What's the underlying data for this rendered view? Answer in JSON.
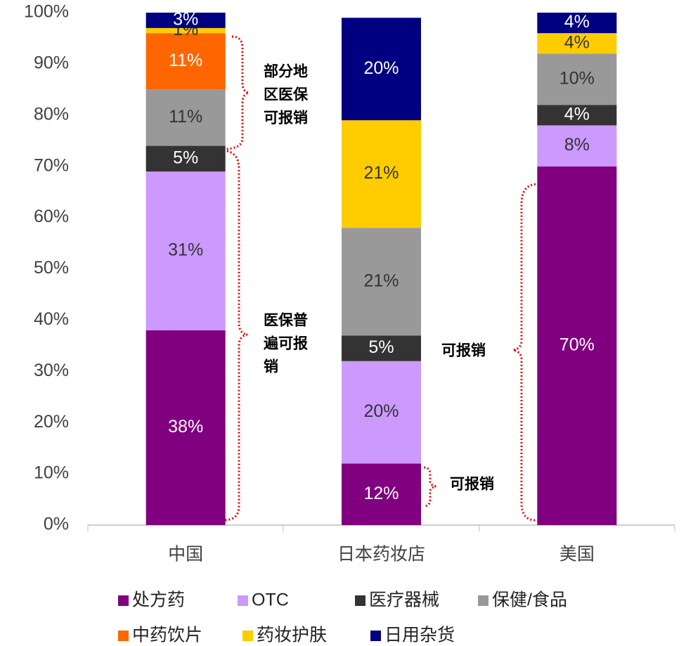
{
  "chart_data": {
    "type": "stacked_bar",
    "categories": [
      "中国",
      "日本药妆店",
      "美国"
    ],
    "series": [
      {
        "name": "处方药",
        "color": "#800080",
        "values": [
          38,
          12,
          70
        ],
        "value_labels": [
          "38%",
          "12%",
          "70%"
        ]
      },
      {
        "name": "OTC",
        "color": "#cc99ff",
        "values": [
          31,
          20,
          8
        ],
        "value_labels": [
          "31%",
          "20%",
          "8%"
        ]
      },
      {
        "name": "医疗器械",
        "color": "#333333",
        "values": [
          5,
          5,
          4
        ],
        "value_labels": [
          "5%",
          "5%",
          "4%"
        ]
      },
      {
        "name": "保健/食品",
        "color": "#999999",
        "values": [
          11,
          21,
          10
        ],
        "value_labels": [
          "11%",
          "21%",
          "10%"
        ]
      },
      {
        "name": "中药饮片",
        "color": "#ff6600",
        "values": [
          11,
          null,
          null
        ],
        "value_labels": [
          "11%",
          null,
          null
        ]
      },
      {
        "name": "药妆护肤",
        "color": "#ffcc00",
        "values": [
          1,
          21,
          4
        ],
        "value_labels": [
          "1%",
          "21%",
          "4%"
        ]
      },
      {
        "name": "日用杂货",
        "color": "#000080",
        "values": [
          3,
          20,
          4
        ],
        "value_labels": [
          "3%",
          "20%",
          "4%"
        ]
      }
    ],
    "ylim": [
      0,
      100
    ],
    "yticks": [
      {
        "value": 0,
        "label": "0%"
      },
      {
        "value": 10,
        "label": "10%"
      },
      {
        "value": 20,
        "label": "20%"
      },
      {
        "value": 30,
        "label": "30%"
      },
      {
        "value": 40,
        "label": "40%"
      },
      {
        "value": 50,
        "label": "50%"
      },
      {
        "value": 60,
        "label": "60%"
      },
      {
        "value": 70,
        "label": "70%"
      },
      {
        "value": 80,
        "label": "80%"
      },
      {
        "value": 90,
        "label": "90%"
      },
      {
        "value": 100,
        "label": "100%"
      }
    ],
    "annotations": [
      [
        "部分地",
        "区医保",
        "可报销"
      ],
      [
        "医保普",
        "遍可报",
        "销"
      ],
      [
        "可报销"
      ],
      [
        "可报销"
      ]
    ]
  }
}
